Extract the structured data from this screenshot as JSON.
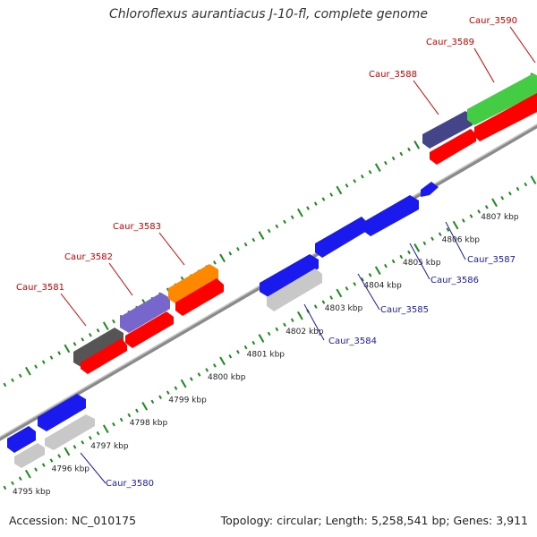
{
  "title": "Chloroflexus aurantiacus J-10-fl, complete genome",
  "footer": {
    "accession": "Accession: NC_010175",
    "summary": "Topology: circular; Length: 5,258,541 bp; Genes: 3,911"
  },
  "colors": {
    "backbone": "#8a8a8a",
    "tick_green": "#1a8a1a",
    "label_red": "#cc0000",
    "label_blue": "#1a1aa8"
  },
  "scale_ticks": [
    {
      "label": "4795 kbp",
      "pos": 0.0
    },
    {
      "label": "4796 kbp",
      "pos": 1.0
    },
    {
      "label": "4797 kbp",
      "pos": 2.0
    },
    {
      "label": "4798 kbp",
      "pos": 3.0
    },
    {
      "label": "4799 kbp",
      "pos": 4.0
    },
    {
      "label": "4800 kbp",
      "pos": 5.0
    },
    {
      "label": "4801 kbp",
      "pos": 6.0
    },
    {
      "label": "4802 kbp",
      "pos": 7.0
    },
    {
      "label": "4803 kbp",
      "pos": 8.0
    },
    {
      "label": "4804 kbp",
      "pos": 9.0
    },
    {
      "label": "4805 kbp",
      "pos": 10.0
    },
    {
      "label": "4806 kbp",
      "pos": 11.0
    },
    {
      "label": "4807 kbp",
      "pos": 12.0
    }
  ],
  "gene_labels": [
    {
      "name": "Caur_3580",
      "strand": "reverse"
    },
    {
      "name": "Caur_3581",
      "strand": "forward"
    },
    {
      "name": "Caur_3582",
      "strand": "forward"
    },
    {
      "name": "Caur_3583",
      "strand": "forward"
    },
    {
      "name": "Caur_3584",
      "strand": "reverse"
    },
    {
      "name": "Caur_3585",
      "strand": "reverse"
    },
    {
      "name": "Caur_3586",
      "strand": "reverse"
    },
    {
      "name": "Caur_3587",
      "strand": "reverse"
    },
    {
      "name": "Caur_3588",
      "strand": "forward"
    },
    {
      "name": "Caur_3589",
      "strand": "forward"
    },
    {
      "name": "Caur_3590",
      "strand": "forward"
    }
  ]
}
